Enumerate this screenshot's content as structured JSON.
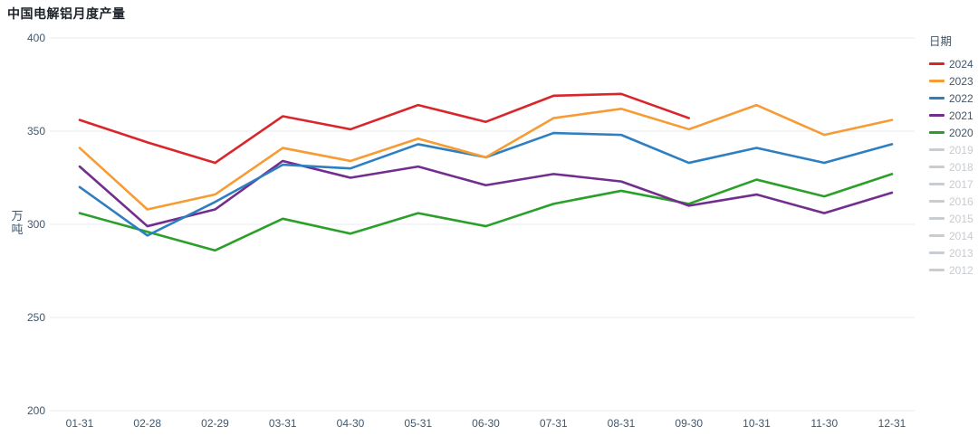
{
  "title": "中国电解铝月度产量",
  "colors": {
    "background": "#ffffff",
    "grid": "#e9ebee",
    "axis_text": "#42576b",
    "title_text": "#1d2129",
    "inactive": "#c9cdd2"
  },
  "chart_data": {
    "type": "line",
    "title": "中国电解铝月度产量",
    "xlabel": "",
    "ylabel": "万吨",
    "ylim": [
      200,
      400
    ],
    "yticks": [
      200,
      250,
      300,
      350,
      400
    ],
    "grid": true,
    "legend_title": "日期",
    "legend_position": "right",
    "categories": [
      "01-31",
      "02-28",
      "02-29",
      "03-31",
      "04-30",
      "05-31",
      "06-30",
      "07-31",
      "08-31",
      "09-30",
      "10-31",
      "11-30",
      "12-31"
    ],
    "series": [
      {
        "name": "2024",
        "color": "#d9262b",
        "values": [
          356,
          344,
          333,
          358,
          351,
          364,
          355,
          369,
          370,
          357,
          null,
          null,
          null
        ]
      },
      {
        "name": "2023",
        "color": "#f79b34",
        "values": [
          341,
          308,
          316,
          341,
          334,
          346,
          336,
          357,
          362,
          351,
          364,
          348,
          356
        ]
      },
      {
        "name": "2022",
        "color": "#2e7fc1",
        "values": [
          320,
          294,
          312,
          332,
          330,
          343,
          336,
          349,
          348,
          333,
          341,
          333,
          343
        ]
      },
      {
        "name": "2021",
        "color": "#722e8e",
        "values": [
          331,
          299,
          308,
          334,
          325,
          331,
          321,
          327,
          323,
          310,
          316,
          306,
          317
        ]
      },
      {
        "name": "2020",
        "color": "#2aa02a",
        "values": [
          306,
          296,
          286,
          303,
          295,
          306,
          299,
          311,
          318,
          311,
          324,
          315,
          327
        ]
      }
    ],
    "inactive_series": [
      "2019",
      "2018",
      "2017",
      "2016",
      "2015",
      "2014",
      "2013",
      "2012"
    ]
  }
}
